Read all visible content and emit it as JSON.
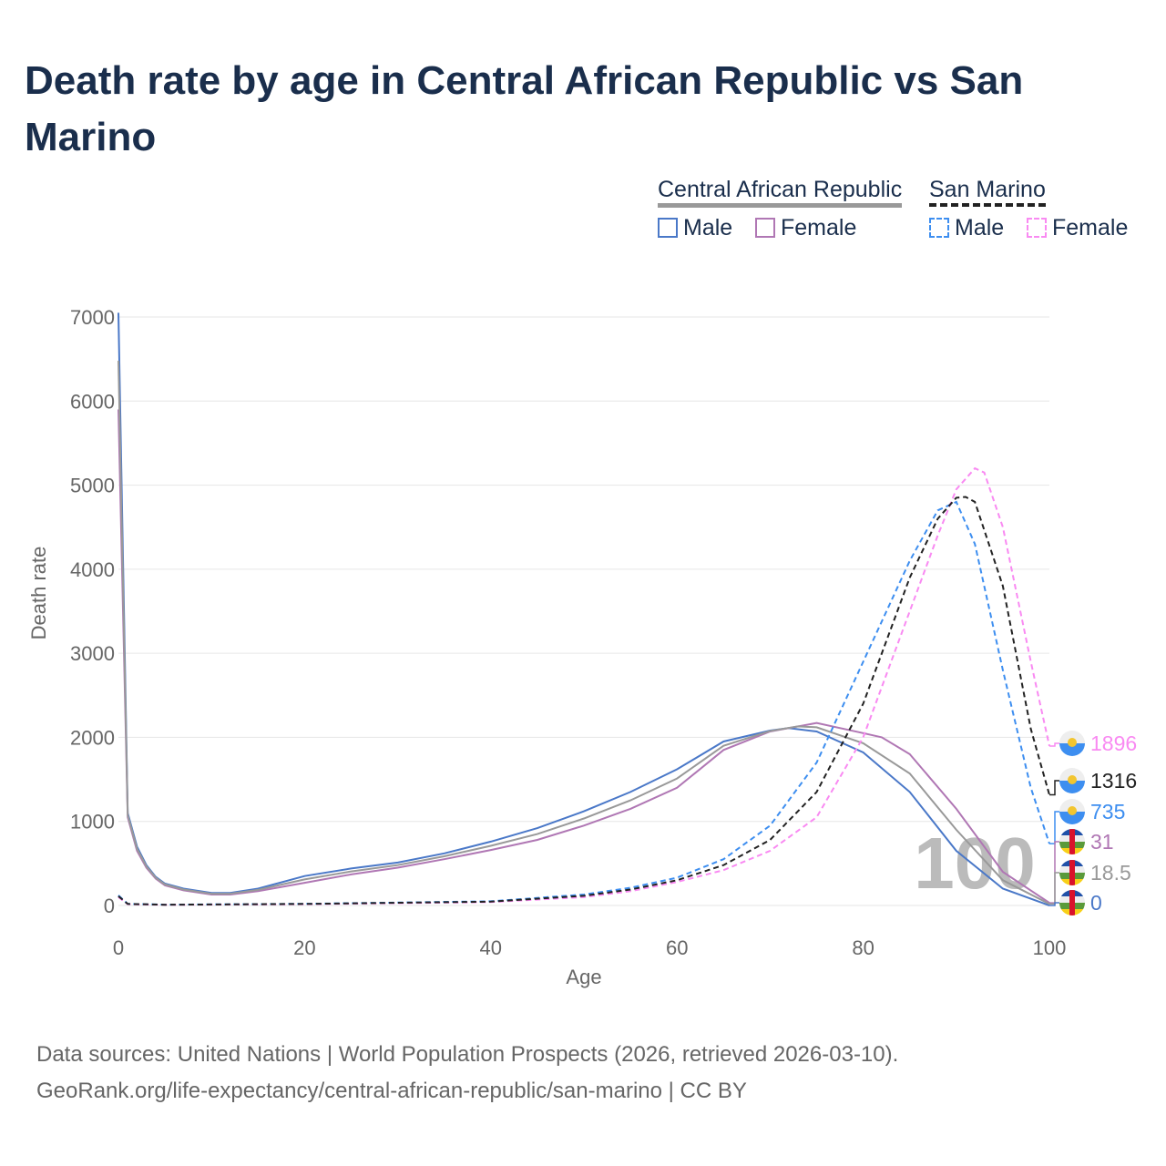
{
  "title": "Death rate by age in Central African Republic vs San Marino",
  "legend": {
    "groups": [
      {
        "name": "Central African Republic",
        "items": [
          "Male",
          "Female"
        ]
      },
      {
        "name": "San Marino",
        "items": [
          "Male",
          "Female"
        ]
      }
    ]
  },
  "watermark": "100",
  "footer": {
    "line1": "Data sources: United Nations | World Population Prospects (2026, retrieved 2026-03-10).",
    "line2": "GeoRank.org/life-expectancy/central-african-republic/san-marino | CC BY"
  },
  "chart_data": {
    "type": "line",
    "xlabel": "Age",
    "ylabel": "Death rate",
    "xlim": [
      0,
      100
    ],
    "ylim": [
      0,
      7000
    ],
    "xticks": [
      0,
      20,
      40,
      60,
      80,
      100
    ],
    "yticks": [
      0,
      1000,
      2000,
      3000,
      4000,
      5000,
      6000,
      7000
    ],
    "grid": true,
    "legend_position": "top-right",
    "series": [
      {
        "name": "Central African Republic - Male",
        "color": "#4a78c8",
        "dash": false,
        "end_label": "0",
        "x": [
          0,
          1,
          2,
          3,
          4,
          5,
          7,
          10,
          12,
          15,
          20,
          25,
          30,
          35,
          40,
          45,
          50,
          55,
          60,
          65,
          70,
          72,
          75,
          80,
          85,
          90,
          95,
          100
        ],
        "y": [
          7050,
          1100,
          700,
          480,
          340,
          260,
          200,
          150,
          150,
          200,
          350,
          440,
          510,
          620,
          760,
          920,
          1120,
          1350,
          1620,
          1950,
          2080,
          2110,
          2070,
          1820,
          1350,
          650,
          200,
          0
        ]
      },
      {
        "name": "Central African Republic - Female",
        "color": "#b077b4",
        "dash": false,
        "end_label": "31",
        "x": [
          0,
          1,
          2,
          3,
          4,
          5,
          7,
          10,
          12,
          15,
          20,
          25,
          30,
          35,
          40,
          45,
          50,
          55,
          60,
          65,
          70,
          75,
          80,
          82,
          85,
          90,
          95,
          100
        ],
        "y": [
          5900,
          1050,
          650,
          450,
          320,
          240,
          180,
          130,
          130,
          170,
          270,
          370,
          450,
          550,
          660,
          780,
          950,
          1150,
          1400,
          1850,
          2070,
          2170,
          2050,
          2000,
          1800,
          1150,
          400,
          31
        ]
      },
      {
        "name": "Central African Republic - Total",
        "color": "#999999",
        "dash": false,
        "end_label": "18.5",
        "x": [
          0,
          1,
          2,
          3,
          4,
          5,
          7,
          10,
          12,
          15,
          20,
          25,
          30,
          35,
          40,
          45,
          50,
          55,
          60,
          65,
          70,
          73,
          75,
          80,
          85,
          90,
          95,
          100
        ],
        "y": [
          6480,
          1075,
          675,
          465,
          330,
          250,
          190,
          140,
          140,
          185,
          310,
          405,
          480,
          585,
          710,
          850,
          1035,
          1250,
          1510,
          1900,
          2075,
          2130,
          2120,
          1930,
          1570,
          900,
          300,
          18.5
        ]
      },
      {
        "name": "San Marino - Male",
        "color": "#3d8ef0",
        "dash": true,
        "end_label": "735",
        "x": [
          0,
          1,
          5,
          20,
          40,
          50,
          55,
          60,
          65,
          70,
          75,
          80,
          85,
          88,
          90,
          92,
          95,
          98,
          100
        ],
        "y": [
          120,
          20,
          10,
          20,
          50,
          130,
          210,
          330,
          550,
          950,
          1700,
          2900,
          4100,
          4700,
          4800,
          4300,
          2800,
          1400,
          735
        ]
      },
      {
        "name": "San Marino - Female",
        "color": "#f98af2",
        "dash": true,
        "end_label": "1896",
        "x": [
          0,
          1,
          5,
          20,
          40,
          50,
          55,
          60,
          65,
          70,
          75,
          80,
          85,
          88,
          90,
          92,
          93,
          95,
          98,
          100
        ],
        "y": [
          100,
          15,
          8,
          15,
          40,
          100,
          170,
          280,
          420,
          650,
          1050,
          2000,
          3500,
          4400,
          4950,
          5200,
          5150,
          4500,
          2900,
          1896
        ]
      },
      {
        "name": "San Marino - Total",
        "color": "#222222",
        "dash": true,
        "end_label": "1316",
        "x": [
          0,
          1,
          5,
          20,
          40,
          50,
          55,
          60,
          65,
          70,
          75,
          80,
          85,
          88,
          90,
          91,
          92,
          95,
          98,
          100
        ],
        "y": [
          110,
          18,
          9,
          18,
          45,
          115,
          190,
          300,
          480,
          780,
          1350,
          2400,
          3900,
          4600,
          4850,
          4860,
          4800,
          3800,
          2100,
          1316
        ]
      }
    ]
  }
}
